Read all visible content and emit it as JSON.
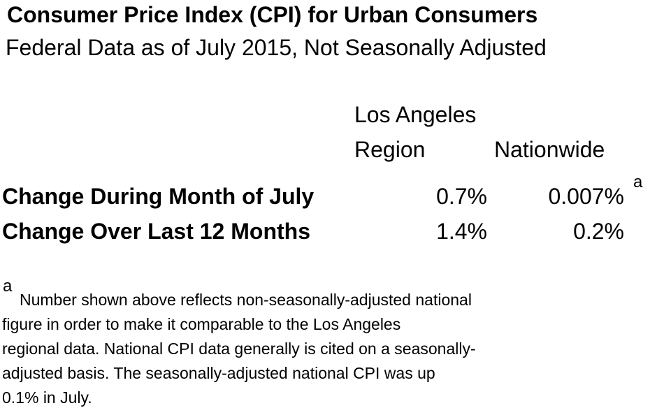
{
  "page": {
    "title": "Consumer Price Index (CPI) for Urban Consumers",
    "subtitle": "Federal Data as of July 2015, Not Seasonally Adjusted"
  },
  "table": {
    "headers": {
      "col_la_line1": "Los Angeles",
      "col_la_line2": "Region",
      "col_nationwide": "Nationwide"
    },
    "rows": [
      {
        "label": "Change During Month of July",
        "la_region": "0.7%",
        "nationwide": "0.007%",
        "footnote_ref": "a"
      },
      {
        "label": "Change Over Last 12 Months",
        "la_region": "1.4%",
        "nationwide": "0.2%"
      }
    ]
  },
  "footnote": {
    "marker": "a",
    "lines": [
      "Number shown above reflects non-seasonally-adjusted national",
      "figure in order to make it comparable to the Los Angeles",
      "regional data. National CPI data generally is cited on a seasonally-",
      "adjusted basis. The seasonally-adjusted national CPI was up",
      "0.1% in July."
    ]
  },
  "colors": {
    "text": "#000000",
    "background": "#ffffff"
  }
}
